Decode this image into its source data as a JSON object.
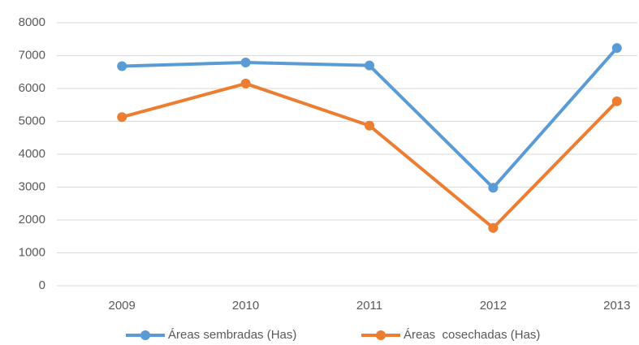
{
  "chart_data": {
    "type": "line",
    "categories": [
      "2009",
      "2010",
      "2011",
      "2012",
      "2013"
    ],
    "series": [
      {
        "name": "Áreas sembradas (Has)",
        "color": "#5b9bd5",
        "values": [
          6680,
          6790,
          6700,
          2980,
          7230
        ]
      },
      {
        "name": "Áreas  cosechadas (Has)",
        "color": "#ed7d31",
        "values": [
          5130,
          6150,
          4870,
          1760,
          5610
        ]
      }
    ],
    "ylim": [
      0,
      8000
    ],
    "yticks": [
      0,
      1000,
      2000,
      3000,
      4000,
      5000,
      6000,
      7000,
      8000
    ],
    "grid": true,
    "legend": "bottom"
  }
}
